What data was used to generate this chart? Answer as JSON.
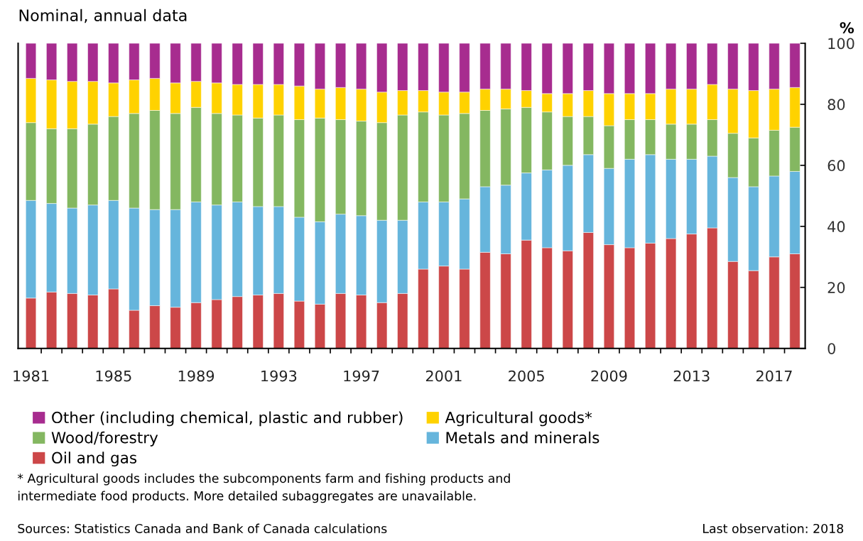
{
  "chart_data": {
    "type": "bar",
    "stacked": true,
    "title": "Nominal, annual data",
    "ylabel": "%",
    "categories": [
      "1981",
      null,
      null,
      null,
      "1985",
      null,
      null,
      null,
      "1989",
      null,
      null,
      null,
      "1993",
      null,
      null,
      null,
      "1997",
      null,
      null,
      null,
      "2001",
      null,
      null,
      null,
      "2005",
      null,
      null,
      null,
      "2009",
      null,
      null,
      null,
      "2013",
      null,
      null,
      null,
      "2017",
      null
    ],
    "series": [
      {
        "name": "Oil and gas",
        "color": "#cc4748",
        "values": [
          16.5,
          18.5,
          18,
          17.5,
          19.5,
          12.5,
          14,
          13.5,
          15,
          16,
          17,
          17.5,
          18,
          15.5,
          14.5,
          18,
          17.5,
          15,
          18,
          26,
          27,
          26,
          31.5,
          31,
          35.5,
          33,
          32,
          38,
          34,
          33,
          34.5,
          36,
          37.5,
          39.5,
          28.5,
          25.5,
          30,
          31
        ]
      },
      {
        "name": "Metals and minerals",
        "color": "#66b5dc",
        "values": [
          32,
          29,
          28,
          29.5,
          29,
          33.5,
          31.5,
          32,
          33,
          31,
          31,
          29,
          28.5,
          27.5,
          27,
          26,
          26,
          27,
          24,
          22,
          21,
          23,
          21.5,
          22.5,
          22,
          25.5,
          28,
          25.5,
          25,
          29,
          29,
          26,
          24.5,
          23.5,
          27.5,
          27.5,
          26.5,
          27
        ]
      },
      {
        "name": "Wood/forestry",
        "color": "#84b761",
        "values": [
          25.5,
          24.5,
          26,
          26.5,
          27.5,
          31,
          32.5,
          31.5,
          31,
          30,
          28.5,
          29,
          30,
          32,
          34,
          31,
          31,
          32,
          34.5,
          29.5,
          28.5,
          28,
          25,
          25,
          21.5,
          19,
          16,
          12.5,
          14,
          13,
          11.5,
          11.5,
          11.5,
          12,
          14.5,
          16,
          15,
          14.5
        ]
      },
      {
        "name": "Agricultural goods*",
        "color": "#ffd200",
        "values": [
          14.5,
          16,
          15.5,
          14,
          11,
          11,
          10.5,
          10,
          8.5,
          10,
          10,
          11,
          10,
          11,
          9.5,
          10.5,
          10.5,
          10,
          8,
          7,
          7.5,
          7,
          7,
          6.5,
          5.5,
          6,
          7.5,
          8.5,
          10.5,
          8.5,
          8.5,
          11.5,
          11.5,
          11.5,
          14.5,
          15.5,
          13.5,
          13
        ]
      },
      {
        "name": "Other (including chemical, plastic and rubber)",
        "color": "#a72c8f",
        "values": [
          11.5,
          12,
          12.5,
          12.5,
          13,
          12,
          11.5,
          13,
          12.5,
          13,
          13.5,
          13.5,
          13.5,
          14,
          15,
          14.5,
          15,
          16,
          15.5,
          15.5,
          16,
          16,
          15,
          15,
          15.5,
          16.5,
          16.5,
          15.5,
          16.5,
          16.5,
          16.5,
          15,
          15,
          13.5,
          15,
          15.5,
          15,
          14.5
        ]
      }
    ],
    "ylim": [
      0,
      100
    ],
    "yticks": [
      0,
      20,
      40,
      60,
      80,
      100
    ],
    "grid": false,
    "legend": "bottom",
    "annotations": [
      "* Agricultural goods includes the subcomponents farm and fishing products and intermediate food products. More detailed subaggregates are unavailable.",
      "Sources: Statistics Canada and Bank of Canada calculations",
      "Last observation: 2018"
    ]
  }
}
